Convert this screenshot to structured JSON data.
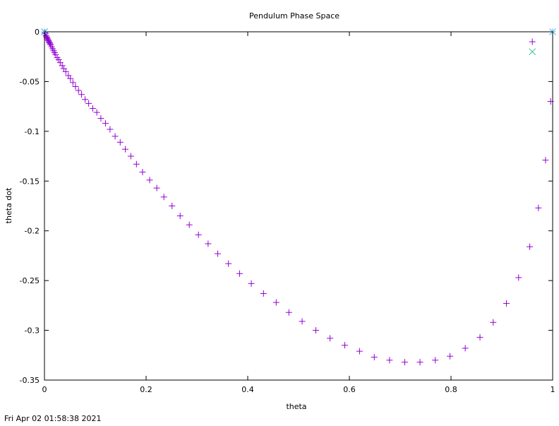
{
  "timestamp": "Fri Apr 02 01:58:38 2021",
  "colors": {
    "series_main": "#9400d3",
    "series_secondary": "#2fc28a",
    "series_tertiary": "#56b4e9",
    "frame": "#000000",
    "background": "#ffffff"
  },
  "chart_data": {
    "type": "scatter",
    "title": "Pendulum Phase Space",
    "xlabel": "theta",
    "ylabel": "theta dot",
    "xlim": [
      0,
      1
    ],
    "ylim": [
      -0.35,
      0
    ],
    "grid": false,
    "legend": "none",
    "xticks": [
      "0",
      "0.2",
      "0.4",
      "0.6",
      "0.8",
      "1"
    ],
    "xtick_values": [
      0,
      0.2,
      0.4,
      0.6,
      0.8,
      1
    ],
    "yticks": [
      "0",
      "-0.05",
      "-0.1",
      "-0.15",
      "-0.2",
      "-0.25",
      "-0.3",
      "-0.35"
    ],
    "ytick_values": [
      0,
      -0.05,
      -0.1,
      -0.15,
      -0.2,
      -0.25,
      -0.3,
      -0.35
    ],
    "series": [
      {
        "marker": "plus",
        "color": "#9400d3",
        "points": [
          [
            0.0,
            0.0
          ],
          [
            0.001,
            -0.001
          ],
          [
            0.002,
            -0.002
          ],
          [
            0.003,
            -0.004
          ],
          [
            0.004,
            -0.005
          ],
          [
            0.005,
            -0.006
          ],
          [
            0.006,
            -0.007
          ],
          [
            0.007,
            -0.008
          ],
          [
            0.008,
            -0.009
          ],
          [
            0.009,
            -0.01
          ],
          [
            0.01,
            -0.011
          ],
          [
            0.011,
            -0.012
          ],
          [
            0.012,
            -0.013
          ],
          [
            0.014,
            -0.015
          ],
          [
            0.016,
            -0.017
          ],
          [
            0.018,
            -0.019
          ],
          [
            0.02,
            -0.021
          ],
          [
            0.022,
            -0.023
          ],
          [
            0.025,
            -0.026
          ],
          [
            0.028,
            -0.028
          ],
          [
            0.031,
            -0.031
          ],
          [
            0.035,
            -0.034
          ],
          [
            0.038,
            -0.037
          ],
          [
            0.042,
            -0.04
          ],
          [
            0.047,
            -0.044
          ],
          [
            0.051,
            -0.047
          ],
          [
            0.056,
            -0.051
          ],
          [
            0.061,
            -0.055
          ],
          [
            0.067,
            -0.059
          ],
          [
            0.073,
            -0.063
          ],
          [
            0.08,
            -0.068
          ],
          [
            0.087,
            -0.072
          ],
          [
            0.095,
            -0.077
          ],
          [
            0.103,
            -0.081
          ],
          [
            0.111,
            -0.087
          ],
          [
            0.12,
            -0.092
          ],
          [
            0.129,
            -0.098
          ],
          [
            0.139,
            -0.105
          ],
          [
            0.149,
            -0.111
          ],
          [
            0.159,
            -0.118
          ],
          [
            0.17,
            -0.125
          ],
          [
            0.181,
            -0.133
          ],
          [
            0.193,
            -0.141
          ],
          [
            0.207,
            -0.149
          ],
          [
            0.221,
            -0.157
          ],
          [
            0.235,
            -0.166
          ],
          [
            0.251,
            -0.175
          ],
          [
            0.267,
            -0.185
          ],
          [
            0.285,
            -0.194
          ],
          [
            0.303,
            -0.204
          ],
          [
            0.322,
            -0.213
          ],
          [
            0.341,
            -0.223
          ],
          [
            0.362,
            -0.233
          ],
          [
            0.384,
            -0.243
          ],
          [
            0.407,
            -0.253
          ],
          [
            0.431,
            -0.263
          ],
          [
            0.456,
            -0.272
          ],
          [
            0.481,
            -0.282
          ],
          [
            0.507,
            -0.291
          ],
          [
            0.534,
            -0.3
          ],
          [
            0.562,
            -0.308
          ],
          [
            0.591,
            -0.315
          ],
          [
            0.62,
            -0.321
          ],
          [
            0.649,
            -0.327
          ],
          [
            0.679,
            -0.33
          ],
          [
            0.709,
            -0.332
          ],
          [
            0.739,
            -0.332
          ],
          [
            0.769,
            -0.33
          ],
          [
            0.798,
            -0.326
          ],
          [
            0.828,
            -0.318
          ],
          [
            0.857,
            -0.307
          ],
          [
            0.883,
            -0.292
          ],
          [
            0.909,
            -0.273
          ],
          [
            0.933,
            -0.247
          ],
          [
            0.955,
            -0.216
          ],
          [
            0.972,
            -0.177
          ],
          [
            0.986,
            -0.129
          ],
          [
            0.996,
            -0.07
          ],
          [
            0.96,
            -0.01
          ]
        ]
      },
      {
        "marker": "cross",
        "color": "#2fc28a",
        "points": [
          [
            0.0,
            0.0
          ],
          [
            0.96,
            -0.02
          ]
        ]
      },
      {
        "marker": "asterisk",
        "color": "#56b4e9",
        "points": [
          [
            0.0,
            0.0
          ],
          [
            1.0,
            0.0
          ]
        ]
      }
    ]
  }
}
